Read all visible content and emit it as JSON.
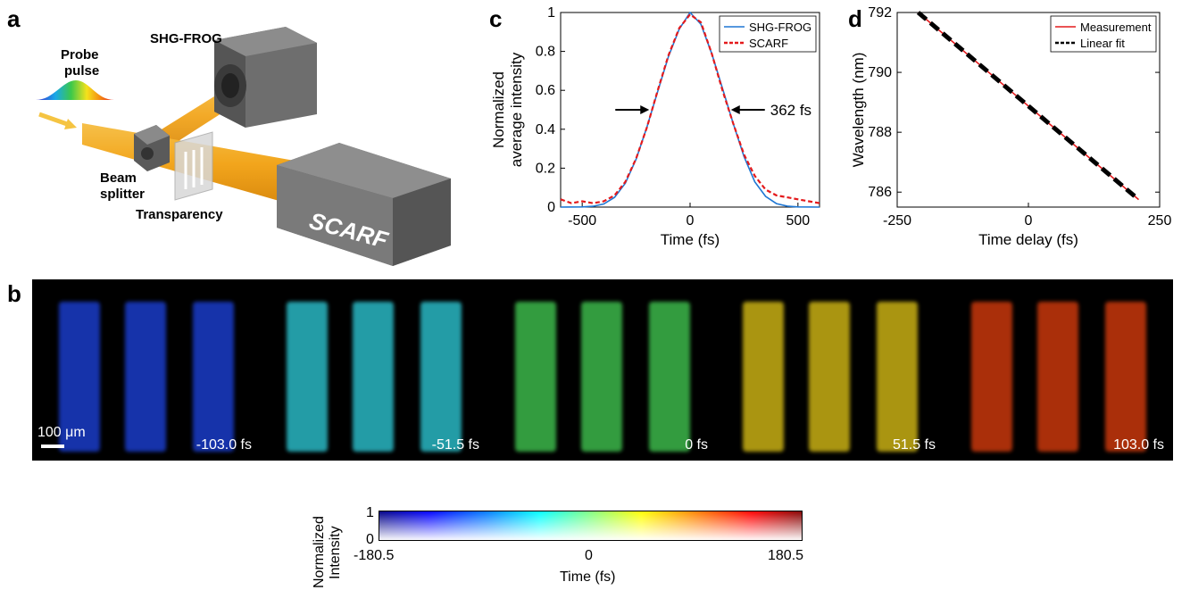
{
  "panels": {
    "a": {
      "letter": "a",
      "labels": {
        "probe": "Probe\npulse",
        "probe_line1": "Probe",
        "probe_line2": "pulse",
        "shg": "SHG-FROG",
        "beam_line1": "Beam",
        "beam_line2": "splitter",
        "transparency": "Transparency",
        "scarf": "SCARF"
      }
    },
    "b": {
      "letter": "b",
      "scale_bar_label": "100 μm",
      "frames": [
        {
          "time": "-103.0 fs",
          "color": "#1a3cc8"
        },
        {
          "time": "-51.5 fs",
          "color": "#2ab8c4"
        },
        {
          "time": "0 fs",
          "color": "#3cb84a"
        },
        {
          "time": "51.5 fs",
          "color": "#c8b014"
        },
        {
          "time": "103.0 fs",
          "color": "#c8380c"
        }
      ],
      "colorbar": {
        "ylabel_line1": "Normalized",
        "ylabel_line2": "Intensity",
        "y_top": "1",
        "y_bottom": "0",
        "x_left": "-180.5",
        "x_mid": "0",
        "x_right": "180.5",
        "xlabel": "Time (fs)"
      }
    },
    "c": {
      "letter": "c",
      "annotation": "362 fs"
    },
    "d": {
      "letter": "d"
    }
  },
  "chart_data": [
    {
      "type": "line",
      "panel": "c",
      "xlabel": "Time (fs)",
      "ylabel_line1": "Normalized",
      "ylabel_line2": "average intensity",
      "xlim": [
        -600,
        600
      ],
      "ylim": [
        0,
        1
      ],
      "xticks": [
        -500,
        0,
        500
      ],
      "yticks": [
        0,
        0.2,
        0.4,
        0.6,
        0.8,
        1
      ],
      "ytick_labels": [
        "0",
        "0.2",
        "0.4",
        "0.6",
        "0.8",
        "1"
      ],
      "legend_position": "top-right",
      "series": [
        {
          "name": "SHG-FROG",
          "color": "#1f77d4",
          "style": "solid",
          "x": [
            -600,
            -500,
            -450,
            -400,
            -350,
            -300,
            -250,
            -200,
            -150,
            -100,
            -50,
            0,
            50,
            100,
            150,
            200,
            250,
            300,
            350,
            400,
            450,
            500,
            600
          ],
          "y": [
            0.0,
            0.001,
            0.004,
            0.016,
            0.05,
            0.123,
            0.247,
            0.412,
            0.595,
            0.774,
            0.915,
            1.0,
            0.94,
            0.79,
            0.61,
            0.43,
            0.26,
            0.13,
            0.055,
            0.018,
            0.005,
            0.001,
            0.0
          ]
        },
        {
          "name": "SCARF",
          "color": "#e41a1c",
          "style": "dashed",
          "x": [
            -600,
            -550,
            -500,
            -450,
            -400,
            -350,
            -300,
            -250,
            -200,
            -150,
            -100,
            -50,
            0,
            50,
            100,
            150,
            200,
            250,
            300,
            350,
            400,
            450,
            500,
            550,
            600
          ],
          "y": [
            0.04,
            0.02,
            0.03,
            0.02,
            0.03,
            0.06,
            0.13,
            0.25,
            0.41,
            0.6,
            0.78,
            0.92,
            0.99,
            0.95,
            0.79,
            0.6,
            0.43,
            0.27,
            0.16,
            0.09,
            0.06,
            0.05,
            0.04,
            0.03,
            0.02
          ]
        }
      ],
      "fwhm_label": "362 fs"
    },
    {
      "type": "line",
      "panel": "d",
      "xlabel": "Time delay (fs)",
      "ylabel": "Wavelength (nm)",
      "xlim": [
        -250,
        250
      ],
      "ylim": [
        785.5,
        792
      ],
      "xticks": [
        -250,
        0,
        250
      ],
      "yticks": [
        786,
        788,
        790,
        792
      ],
      "legend_position": "top-right",
      "series": [
        {
          "name": "Measurement",
          "color": "#e41a1c",
          "style": "solid",
          "x": [
            -210,
            210
          ],
          "y": [
            792.0,
            785.75
          ]
        },
        {
          "name": "Linear fit",
          "color": "#000000",
          "style": "dashed",
          "x": [
            -210,
            210
          ],
          "y": [
            792.0,
            785.75
          ]
        }
      ]
    }
  ]
}
